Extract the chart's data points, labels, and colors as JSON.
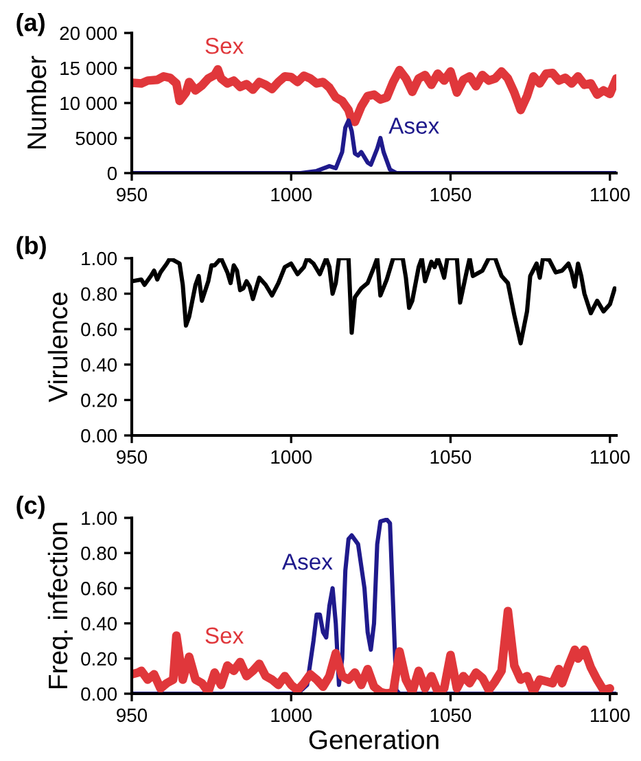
{
  "chart_data": [
    {
      "type": "line",
      "title": "(a)",
      "ylabel": "Number",
      "xlim": [
        950,
        1102
      ],
      "xticks": [
        950,
        1000,
        1050,
        1100
      ],
      "ylim": [
        0,
        20000
      ],
      "yticks": [
        0,
        5000,
        {
          "value": 10000,
          "label": "10 000"
        },
        {
          "value": 15000,
          "label": "15 000"
        },
        {
          "value": 20000,
          "label": "20 000"
        }
      ],
      "grid": false,
      "legend": false,
      "series": [
        {
          "name": "Sex",
          "color": "#e0373b",
          "x": [
            950,
            953,
            955,
            958,
            960,
            962,
            964,
            965,
            967,
            968,
            970,
            972,
            974,
            976,
            977,
            978,
            980,
            982,
            984,
            986,
            988,
            990,
            992,
            994,
            996,
            998,
            1000,
            1002,
            1004,
            1006,
            1008,
            1010,
            1012,
            1014,
            1016,
            1018,
            1019,
            1020,
            1022,
            1024,
            1026,
            1028,
            1030,
            1032,
            1034,
            1036,
            1038,
            1040,
            1042,
            1044,
            1046,
            1048,
            1050,
            1052,
            1054,
            1056,
            1058,
            1060,
            1062,
            1064,
            1066,
            1068,
            1070,
            1072,
            1074,
            1076,
            1078,
            1080,
            1082,
            1084,
            1086,
            1088,
            1090,
            1092,
            1094,
            1096,
            1098,
            1100,
            1102
          ],
          "values": [
            12900,
            12800,
            13200,
            13300,
            13800,
            13600,
            12800,
            10300,
            11500,
            13000,
            11800,
            12500,
            13500,
            14000,
            14800,
            13500,
            12800,
            13200,
            12300,
            12700,
            11900,
            13000,
            12600,
            12000,
            13000,
            13800,
            13700,
            13000,
            13900,
            13500,
            12800,
            13000,
            12200,
            10800,
            10300,
            9000,
            7500,
            7300,
            9500,
            11000,
            11200,
            10500,
            10800,
            13000,
            14700,
            13500,
            11600,
            13500,
            14000,
            12600,
            14200,
            13200,
            14500,
            11500,
            13300,
            13800,
            12400,
            14000,
            13200,
            13500,
            14500,
            13500,
            11500,
            9000,
            11000,
            13800,
            12800,
            14200,
            14300,
            13200,
            13600,
            12800,
            13800,
            12600,
            12800,
            11200,
            11800,
            11300,
            13500
          ]
        },
        {
          "name": "Asex",
          "color": "#1f1a8c",
          "x": [
            950,
            1003,
            1008,
            1012,
            1014,
            1016,
            1017,
            1018,
            1019,
            1020,
            1021,
            1022,
            1024,
            1025,
            1027,
            1028,
            1029,
            1031,
            1033,
            1102
          ],
          "values": [
            0,
            0,
            300,
            1000,
            700,
            3000,
            6500,
            7500,
            6000,
            2800,
            2500,
            3000,
            1500,
            1200,
            3500,
            5000,
            3000,
            500,
            0,
            0
          ]
        }
      ]
    },
    {
      "type": "line",
      "title": "(b)",
      "ylabel": "Virulence",
      "xlim": [
        950,
        1102
      ],
      "xticks": [
        950,
        1000,
        1050,
        1100
      ],
      "ylim": [
        0,
        1
      ],
      "yticks": [
        {
          "value": 0,
          "label": "0.00"
        },
        {
          "value": 0.2,
          "label": "0.20"
        },
        {
          "value": 0.4,
          "label": "0.40"
        },
        {
          "value": 0.6,
          "label": "0.60"
        },
        {
          "value": 0.8,
          "label": "0.80"
        },
        {
          "value": 1,
          "label": "1.00"
        }
      ],
      "grid": false,
      "legend": false,
      "series": [
        {
          "color": "#000000",
          "x": [
            950,
            953,
            954,
            956,
            957,
            958,
            959,
            961,
            962,
            964,
            965,
            966,
            967,
            968,
            970,
            971,
            972,
            974,
            975,
            976,
            978,
            980,
            981,
            982,
            983,
            984,
            985,
            986,
            987,
            988,
            990,
            992,
            994,
            996,
            998,
            1000,
            1002,
            1004,
            1005,
            1007,
            1009,
            1011,
            1012,
            1013,
            1014,
            1015,
            1018,
            1019,
            1020,
            1022,
            1024,
            1026,
            1027,
            1028,
            1030,
            1032,
            1035,
            1036,
            1037,
            1038,
            1040,
            1041,
            1042,
            1044,
            1045,
            1046,
            1047,
            1048,
            1049,
            1052,
            1053,
            1055,
            1056,
            1057,
            1058,
            1060,
            1062,
            1064,
            1066,
            1068,
            1070,
            1072,
            1074,
            1075,
            1077,
            1078,
            1079,
            1081,
            1083,
            1085,
            1087,
            1088,
            1089,
            1090,
            1091,
            1092,
            1094,
            1096,
            1098,
            1100,
            1101.5
          ],
          "values": [
            0.87,
            0.88,
            0.85,
            0.9,
            0.93,
            0.88,
            0.92,
            0.97,
            1.0,
            0.98,
            0.97,
            0.85,
            0.62,
            0.67,
            0.85,
            0.9,
            0.76,
            0.87,
            0.96,
            0.96,
            1.0,
            0.92,
            0.86,
            0.96,
            0.93,
            0.82,
            0.83,
            0.87,
            0.84,
            0.77,
            0.89,
            0.85,
            0.79,
            0.86,
            0.95,
            0.97,
            0.91,
            0.95,
            1.0,
            0.97,
            0.91,
            1.0,
            0.95,
            0.8,
            0.86,
            1.0,
            1.0,
            0.58,
            0.78,
            0.83,
            0.86,
            0.95,
            1.0,
            0.79,
            0.88,
            1.0,
            1.0,
            0.89,
            0.72,
            0.76,
            0.95,
            1.0,
            0.87,
            0.98,
            0.95,
            1.0,
            0.95,
            0.89,
            1.0,
            1.0,
            0.75,
            0.92,
            1.0,
            0.9,
            0.91,
            0.93,
            1.0,
            1.0,
            0.9,
            0.86,
            0.68,
            0.52,
            0.7,
            0.9,
            0.97,
            0.89,
            1.0,
            0.99,
            0.92,
            0.93,
            0.97,
            0.92,
            0.84,
            0.97,
            0.9,
            0.8,
            0.69,
            0.76,
            0.7,
            0.74,
            0.83
          ]
        }
      ]
    },
    {
      "type": "line",
      "title": "(c)",
      "xlabel": "Generation",
      "ylabel": "Freq. infection",
      "xlim": [
        950,
        1102
      ],
      "xticks": [
        950,
        1000,
        1050,
        1100
      ],
      "ylim": [
        0,
        1
      ],
      "yticks": [
        {
          "value": 0,
          "label": "0.00"
        },
        {
          "value": 0.2,
          "label": "0.20"
        },
        {
          "value": 0.4,
          "label": "0.40"
        },
        {
          "value": 0.6,
          "label": "0.60"
        },
        {
          "value": 0.8,
          "label": "0.80"
        },
        {
          "value": 1,
          "label": "1.00"
        }
      ],
      "grid": false,
      "legend": false,
      "series": [
        {
          "name": "Asex",
          "color": "#1f1a8c",
          "x": [
            950,
            1002,
            1005,
            1007,
            1008,
            1009,
            1010,
            1011,
            1012,
            1013,
            1014,
            1015,
            1016,
            1017,
            1018,
            1019,
            1021,
            1023,
            1024,
            1025,
            1026,
            1027,
            1028,
            1030,
            1031,
            1032,
            1033,
            1034,
            1102
          ],
          "values": [
            0,
            0,
            0.05,
            0.3,
            0.45,
            0.45,
            0.35,
            0.32,
            0.5,
            0.6,
            0.4,
            0.05,
            0.2,
            0.7,
            0.88,
            0.9,
            0.85,
            0.6,
            0.35,
            0.25,
            0.4,
            0.85,
            0.98,
            0.99,
            0.97,
            0.5,
            0.02,
            0,
            0
          ]
        },
        {
          "name": "Sex",
          "color": "#e0373b",
          "x": [
            950,
            952,
            953,
            955,
            957,
            959,
            961,
            963,
            964,
            966,
            968,
            970,
            972,
            974,
            976,
            978,
            980,
            982,
            984,
            986,
            988,
            990,
            992,
            994,
            996,
            998,
            1000,
            1002,
            1004,
            1006,
            1008,
            1010,
            1012,
            1014,
            1016,
            1018,
            1020,
            1022,
            1024,
            1026,
            1028,
            1030,
            1032,
            1034,
            1036,
            1038,
            1040,
            1042,
            1044,
            1046,
            1048,
            1050,
            1052,
            1054,
            1056,
            1058,
            1060,
            1062,
            1064,
            1066,
            1068,
            1070,
            1072,
            1074,
            1076,
            1078,
            1080,
            1082,
            1084,
            1085,
            1087,
            1089,
            1090,
            1092,
            1094,
            1096,
            1098,
            1100
          ],
          "values": [
            0.11,
            0.12,
            0.13,
            0.08,
            0.11,
            0.03,
            0.06,
            0.08,
            0.33,
            0.08,
            0.21,
            0.08,
            0.06,
            0.01,
            0.12,
            0.05,
            0.16,
            0.13,
            0.18,
            0.1,
            0.13,
            0.17,
            0.1,
            0.08,
            0.05,
            0.1,
            0.05,
            0.02,
            0.06,
            0.11,
            0.08,
            0.04,
            0.1,
            0.23,
            0.1,
            0.08,
            0.12,
            0.05,
            0.14,
            0.04,
            0.01,
            0.0,
            0.01,
            0.24,
            0.08,
            0.01,
            0.13,
            0.03,
            0.1,
            0.01,
            0.03,
            0.22,
            0.03,
            0.1,
            0.06,
            0.12,
            0.09,
            0.02,
            0.07,
            0.13,
            0.47,
            0.16,
            0.08,
            0.1,
            0.01,
            0.08,
            0.07,
            0.06,
            0.14,
            0.06,
            0.16,
            0.25,
            0.2,
            0.25,
            0.15,
            0.08,
            0.02,
            0.03
          ]
        }
      ]
    }
  ]
}
